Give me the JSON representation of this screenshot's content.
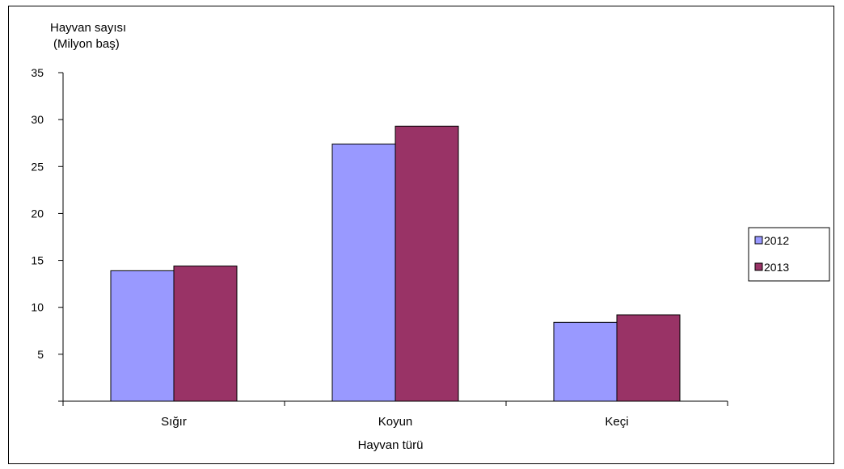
{
  "chart_data": {
    "type": "bar",
    "title": "",
    "ylabel_line1": "Hayvan sayısı",
    "ylabel_line2": "(Milyon baş)",
    "xlabel": "Hayvan türü",
    "categories": [
      "Sığır",
      "Koyun",
      "Keçi"
    ],
    "series": [
      {
        "name": "2012",
        "color": "#9999ff",
        "values": [
          13.9,
          27.4,
          8.4
        ]
      },
      {
        "name": "2013",
        "color": "#993366",
        "values": [
          14.4,
          29.3,
          9.2
        ]
      }
    ],
    "ylim": [
      0,
      35
    ],
    "yticks": [
      5,
      10,
      15,
      20,
      25,
      30,
      35
    ],
    "grid": false,
    "legend": "right"
  }
}
